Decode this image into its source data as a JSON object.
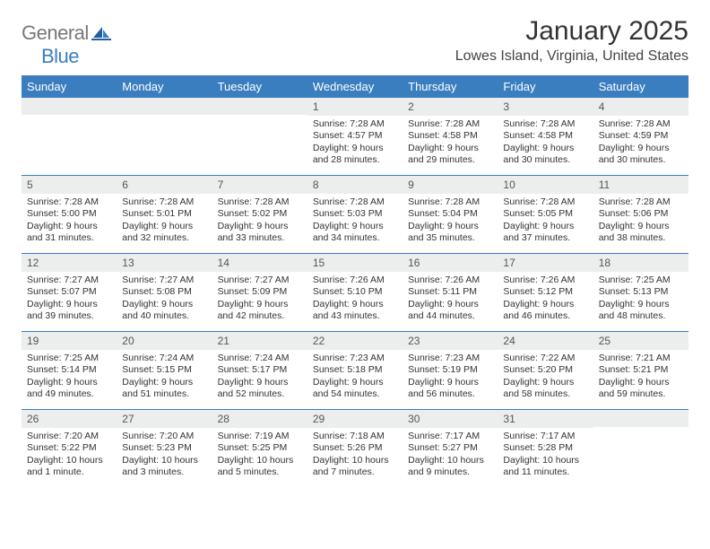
{
  "brand": {
    "part1": "General",
    "part2": "Blue"
  },
  "title": "January 2025",
  "subtitle": "Lowes Island, Virginia, United States",
  "colors": {
    "header_blue": "#3a7ebf",
    "daynum_bg": "#eceded",
    "text": "#333333",
    "background": "#ffffff"
  },
  "weekdays": [
    "Sunday",
    "Monday",
    "Tuesday",
    "Wednesday",
    "Thursday",
    "Friday",
    "Saturday"
  ],
  "weeks": [
    [
      {
        "n": "",
        "sr": "",
        "ss": "",
        "dl": ""
      },
      {
        "n": "",
        "sr": "",
        "ss": "",
        "dl": ""
      },
      {
        "n": "",
        "sr": "",
        "ss": "",
        "dl": ""
      },
      {
        "n": "1",
        "sr": "Sunrise: 7:28 AM",
        "ss": "Sunset: 4:57 PM",
        "dl": "Daylight: 9 hours and 28 minutes."
      },
      {
        "n": "2",
        "sr": "Sunrise: 7:28 AM",
        "ss": "Sunset: 4:58 PM",
        "dl": "Daylight: 9 hours and 29 minutes."
      },
      {
        "n": "3",
        "sr": "Sunrise: 7:28 AM",
        "ss": "Sunset: 4:58 PM",
        "dl": "Daylight: 9 hours and 30 minutes."
      },
      {
        "n": "4",
        "sr": "Sunrise: 7:28 AM",
        "ss": "Sunset: 4:59 PM",
        "dl": "Daylight: 9 hours and 30 minutes."
      }
    ],
    [
      {
        "n": "5",
        "sr": "Sunrise: 7:28 AM",
        "ss": "Sunset: 5:00 PM",
        "dl": "Daylight: 9 hours and 31 minutes."
      },
      {
        "n": "6",
        "sr": "Sunrise: 7:28 AM",
        "ss": "Sunset: 5:01 PM",
        "dl": "Daylight: 9 hours and 32 minutes."
      },
      {
        "n": "7",
        "sr": "Sunrise: 7:28 AM",
        "ss": "Sunset: 5:02 PM",
        "dl": "Daylight: 9 hours and 33 minutes."
      },
      {
        "n": "8",
        "sr": "Sunrise: 7:28 AM",
        "ss": "Sunset: 5:03 PM",
        "dl": "Daylight: 9 hours and 34 minutes."
      },
      {
        "n": "9",
        "sr": "Sunrise: 7:28 AM",
        "ss": "Sunset: 5:04 PM",
        "dl": "Daylight: 9 hours and 35 minutes."
      },
      {
        "n": "10",
        "sr": "Sunrise: 7:28 AM",
        "ss": "Sunset: 5:05 PM",
        "dl": "Daylight: 9 hours and 37 minutes."
      },
      {
        "n": "11",
        "sr": "Sunrise: 7:28 AM",
        "ss": "Sunset: 5:06 PM",
        "dl": "Daylight: 9 hours and 38 minutes."
      }
    ],
    [
      {
        "n": "12",
        "sr": "Sunrise: 7:27 AM",
        "ss": "Sunset: 5:07 PM",
        "dl": "Daylight: 9 hours and 39 minutes."
      },
      {
        "n": "13",
        "sr": "Sunrise: 7:27 AM",
        "ss": "Sunset: 5:08 PM",
        "dl": "Daylight: 9 hours and 40 minutes."
      },
      {
        "n": "14",
        "sr": "Sunrise: 7:27 AM",
        "ss": "Sunset: 5:09 PM",
        "dl": "Daylight: 9 hours and 42 minutes."
      },
      {
        "n": "15",
        "sr": "Sunrise: 7:26 AM",
        "ss": "Sunset: 5:10 PM",
        "dl": "Daylight: 9 hours and 43 minutes."
      },
      {
        "n": "16",
        "sr": "Sunrise: 7:26 AM",
        "ss": "Sunset: 5:11 PM",
        "dl": "Daylight: 9 hours and 44 minutes."
      },
      {
        "n": "17",
        "sr": "Sunrise: 7:26 AM",
        "ss": "Sunset: 5:12 PM",
        "dl": "Daylight: 9 hours and 46 minutes."
      },
      {
        "n": "18",
        "sr": "Sunrise: 7:25 AM",
        "ss": "Sunset: 5:13 PM",
        "dl": "Daylight: 9 hours and 48 minutes."
      }
    ],
    [
      {
        "n": "19",
        "sr": "Sunrise: 7:25 AM",
        "ss": "Sunset: 5:14 PM",
        "dl": "Daylight: 9 hours and 49 minutes."
      },
      {
        "n": "20",
        "sr": "Sunrise: 7:24 AM",
        "ss": "Sunset: 5:15 PM",
        "dl": "Daylight: 9 hours and 51 minutes."
      },
      {
        "n": "21",
        "sr": "Sunrise: 7:24 AM",
        "ss": "Sunset: 5:17 PM",
        "dl": "Daylight: 9 hours and 52 minutes."
      },
      {
        "n": "22",
        "sr": "Sunrise: 7:23 AM",
        "ss": "Sunset: 5:18 PM",
        "dl": "Daylight: 9 hours and 54 minutes."
      },
      {
        "n": "23",
        "sr": "Sunrise: 7:23 AM",
        "ss": "Sunset: 5:19 PM",
        "dl": "Daylight: 9 hours and 56 minutes."
      },
      {
        "n": "24",
        "sr": "Sunrise: 7:22 AM",
        "ss": "Sunset: 5:20 PM",
        "dl": "Daylight: 9 hours and 58 minutes."
      },
      {
        "n": "25",
        "sr": "Sunrise: 7:21 AM",
        "ss": "Sunset: 5:21 PM",
        "dl": "Daylight: 9 hours and 59 minutes."
      }
    ],
    [
      {
        "n": "26",
        "sr": "Sunrise: 7:20 AM",
        "ss": "Sunset: 5:22 PM",
        "dl": "Daylight: 10 hours and 1 minute."
      },
      {
        "n": "27",
        "sr": "Sunrise: 7:20 AM",
        "ss": "Sunset: 5:23 PM",
        "dl": "Daylight: 10 hours and 3 minutes."
      },
      {
        "n": "28",
        "sr": "Sunrise: 7:19 AM",
        "ss": "Sunset: 5:25 PM",
        "dl": "Daylight: 10 hours and 5 minutes."
      },
      {
        "n": "29",
        "sr": "Sunrise: 7:18 AM",
        "ss": "Sunset: 5:26 PM",
        "dl": "Daylight: 10 hours and 7 minutes."
      },
      {
        "n": "30",
        "sr": "Sunrise: 7:17 AM",
        "ss": "Sunset: 5:27 PM",
        "dl": "Daylight: 10 hours and 9 minutes."
      },
      {
        "n": "31",
        "sr": "Sunrise: 7:17 AM",
        "ss": "Sunset: 5:28 PM",
        "dl": "Daylight: 10 hours and 11 minutes."
      },
      {
        "n": "",
        "sr": "",
        "ss": "",
        "dl": ""
      }
    ]
  ]
}
